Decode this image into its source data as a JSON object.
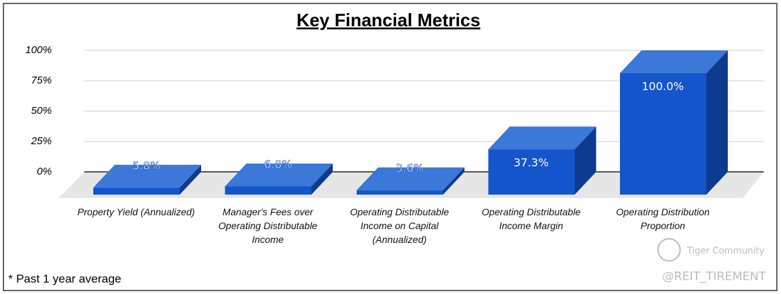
{
  "chart_data": {
    "type": "bar3d",
    "title": "Key Financial Metrics",
    "categories": [
      "Property Yield (Annualized)",
      "Manager's Fees over Operating Distributable Income",
      "Operating Distributable Income on Capital (Annualized)",
      "Operating Distributable Income Margin",
      "Operating Distribution Proportion"
    ],
    "values": [
      5.8,
      6.8,
      3.6,
      37.3,
      100.0
    ],
    "value_labels": [
      "5.8%",
      "6.8%",
      "3.6%",
      "37.3%",
      "100.0%"
    ],
    "color": "#1555cc",
    "ylim": [
      0,
      100
    ],
    "yticks": [
      {
        "value": 0,
        "label": "0%"
      },
      {
        "value": 25,
        "label": "25%"
      },
      {
        "value": 50,
        "label": "50%"
      },
      {
        "value": 75,
        "label": "75%"
      },
      {
        "value": 100,
        "label": "100%"
      }
    ],
    "grid": true
  },
  "footnote": "* Past 1 year average",
  "watermark": {
    "brand": "Tiger Community",
    "handle": "@REIT_TIREMENT"
  }
}
